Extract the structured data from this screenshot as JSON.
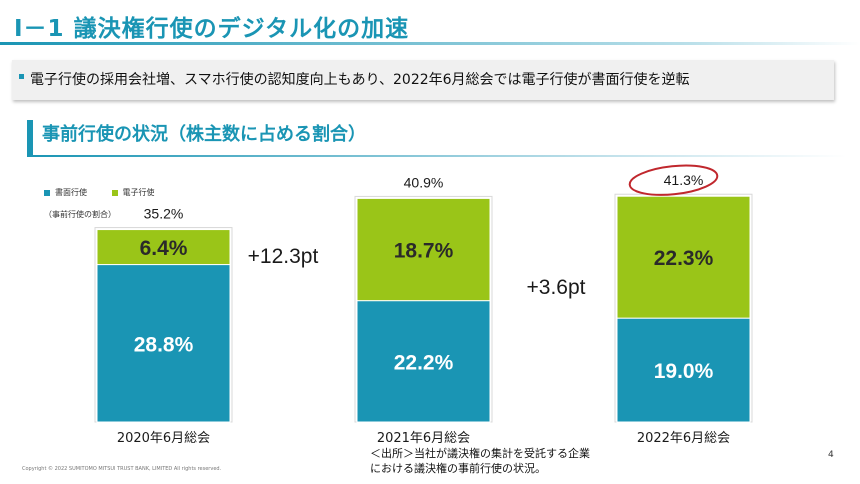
{
  "title": "Ⅰ－1  議決権行使のデジタル化の加速",
  "summary": "電子行使の採用会社増、スマホ行使の認知度向上もあり、2022年6月総会では電子行使が書面行使を逆転",
  "section_title": "事前行使の状況（株主数に占める割合）",
  "legend": {
    "paper": "書面行使",
    "electronic": "電子行使",
    "note": "（事前行使の割合）"
  },
  "colors": {
    "accent": "#1a95b4",
    "paper": "#1a95b4",
    "electronic": "#9ac518",
    "highlight_circle": "#c0272d"
  },
  "footnote": {
    "line1": "＜出所＞当社が議決権の集計を受託する企業",
    "line2": "における議決権の事前行使の状況。"
  },
  "copyright": "Copyright © 2022 SUMITOMO MITSUI TRUST BANK, LIMITED All rights reserved.",
  "page_number": "4",
  "chart_data": {
    "type": "bar",
    "stacked": true,
    "categories": [
      "2020年6月総会",
      "2021年6月総会",
      "2022年6月総会"
    ],
    "series": [
      {
        "name": "書面行使",
        "values": [
          28.8,
          22.2,
          19.0
        ],
        "labels": [
          "28.8%",
          "22.2%",
          "19.0%"
        ]
      },
      {
        "name": "電子行使",
        "values": [
          6.4,
          18.7,
          22.3
        ],
        "labels": [
          "6.4%",
          "18.7%",
          "22.3%"
        ]
      }
    ],
    "totals": [
      35.2,
      40.9,
      41.3
    ],
    "total_labels": [
      "35.2%",
      "40.9%",
      "41.3%"
    ],
    "changes": [
      {
        "between": [
          0,
          1
        ],
        "label": "+12.3pt"
      },
      {
        "between": [
          1,
          2
        ],
        "label": "+3.6pt"
      }
    ],
    "highlighted_total": 2,
    "ylim": [
      0,
      45
    ],
    "grid": false
  }
}
